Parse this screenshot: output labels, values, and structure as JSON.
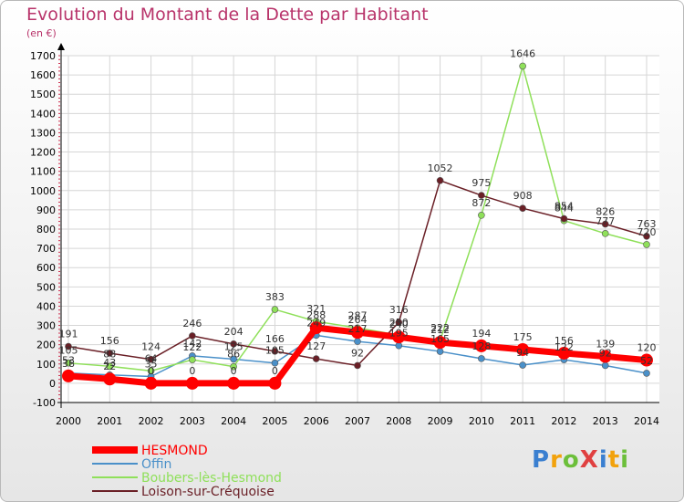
{
  "title": "Evolution du Montant de la Dette par Habitant",
  "unit": "(en €)",
  "logo": "ProXiti",
  "chart_data": {
    "type": "line",
    "x": [
      "2000",
      "2001",
      "2002",
      "2003",
      "2004",
      "2005",
      "2006",
      "2007",
      "2008",
      "2009",
      "2010",
      "2011",
      "2012",
      "2013",
      "2014"
    ],
    "ylim": [
      -100,
      1700
    ],
    "yticks": [
      -100,
      0,
      100,
      200,
      300,
      400,
      500,
      600,
      700,
      800,
      900,
      1000,
      1100,
      1200,
      1300,
      1400,
      1500,
      1600,
      1700
    ],
    "grid": true,
    "legend": "bottom-left",
    "series": [
      {
        "name": "HESMOND",
        "color": "#ff0000",
        "width": 7,
        "values": [
          38,
          22,
          0,
          0,
          0,
          0,
          288,
          264,
          240,
          212,
          194,
          175,
          156,
          139,
          120
        ],
        "labels": [
          "38",
          "22",
          "0",
          "0",
          "0",
          "0",
          "288",
          "264",
          "240",
          "212",
          "194",
          "175",
          "156",
          "139",
          "120"
        ]
      },
      {
        "name": "Offin",
        "color": "#4a90c9",
        "width": 1.5,
        "values": [
          53,
          43,
          35,
          142,
          125,
          105,
          249,
          217,
          195,
          165,
          128,
          94,
          122,
          92,
          52
        ],
        "labels": [
          "53",
          "43",
          "35",
          "142",
          "125",
          "105",
          "249",
          "217",
          "195",
          "165",
          "128",
          "94",
          "122",
          "92",
          "52"
        ]
      },
      {
        "name": "Boubers-lès-Hesmond",
        "color": "#8fe05a",
        "width": 1.5,
        "values": [
          105,
          88,
          64,
          122,
          86,
          383,
          321,
          287,
          250,
          222,
          872,
          1646,
          844,
          777,
          720
        ],
        "labels": [
          "105",
          "88",
          "64",
          "122",
          "86",
          "383",
          "321",
          "287",
          "250",
          "222",
          "872",
          "1646",
          "844",
          "777",
          "720"
        ]
      },
      {
        "name": "Loison-sur-Créquoise",
        "color": "#6a1f26",
        "width": 1.5,
        "values": [
          191,
          156,
          124,
          246,
          204,
          166,
          127,
          92,
          316,
          1052,
          975,
          908,
          854,
          826,
          763
        ],
        "labels": [
          "191",
          "156",
          "124",
          "246",
          "204",
          "166",
          "127",
          "92",
          "316",
          "1052",
          "975",
          "908",
          "854",
          "826",
          "763"
        ]
      }
    ]
  }
}
